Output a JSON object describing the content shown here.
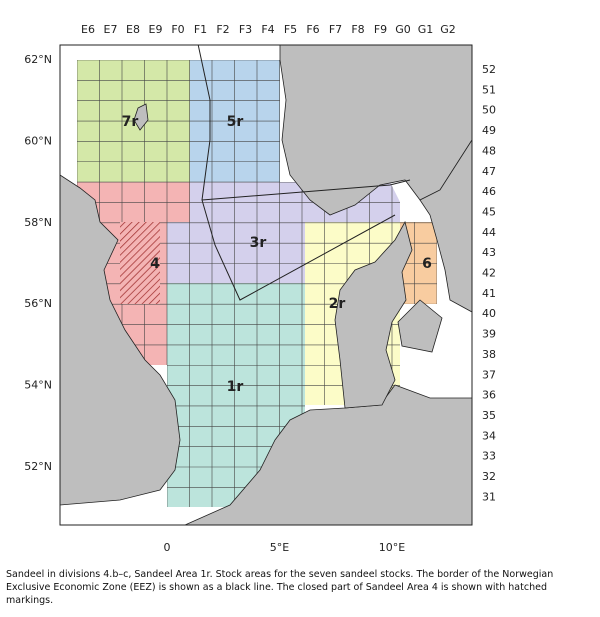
{
  "top_labels": [
    "E6",
    "E7",
    "E8",
    "E9",
    "F0",
    "F1",
    "F2",
    "F3",
    "F4",
    "F5",
    "F6",
    "F7",
    "F8",
    "F9",
    "G0",
    "G1",
    "G2"
  ],
  "right_labels": [
    "52",
    "51",
    "50",
    "49",
    "48",
    "47",
    "46",
    "45",
    "44",
    "43",
    "42",
    "41",
    "40",
    "39",
    "38",
    "37",
    "36",
    "35",
    "34",
    "33",
    "32",
    "31"
  ],
  "left_labels": [
    "62°N",
    "60°N",
    "58°N",
    "56°N",
    "54°N",
    "52°N"
  ],
  "bottom_labels": [
    "0",
    "5°E",
    "10°E"
  ],
  "areas": [
    {
      "label": "7r"
    },
    {
      "label": "5r"
    },
    {
      "label": "4"
    },
    {
      "label": "3r"
    },
    {
      "label": "1r"
    },
    {
      "label": "2r"
    },
    {
      "label": "6"
    }
  ],
  "caption": "Sandeel in divisions 4.b–c, Sandeel Area 1r. Stock areas for the seven sandeel stocks. The border of the Norwegian Exclusive Economic Zone (EEZ) is shown as a black line. The closed part of Sandeel Area 4 is shown with hatched markings."
}
